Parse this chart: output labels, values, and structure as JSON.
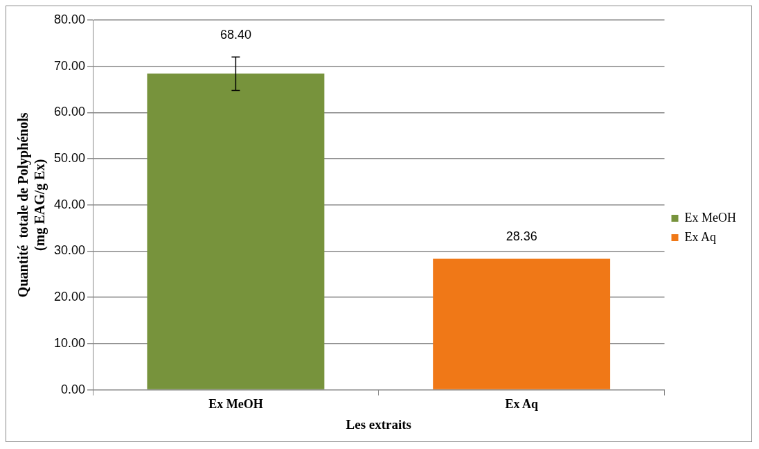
{
  "chart_data": {
    "type": "bar",
    "xlabel": "Les extraits",
    "ylabel": "Quantité  totale de Polyphénols\n(mg EAG/g Ex)",
    "categories": [
      "Ex MeOH",
      "Ex Aq"
    ],
    "series": [
      {
        "name": "Ex MeOH",
        "color": "#77933c",
        "values": [
          68.4,
          null
        ],
        "errors": [
          [
            64.8,
            72.0
          ],
          null
        ],
        "value_labels": [
          "68.40",
          null
        ]
      },
      {
        "name": "Ex Aq",
        "color": "#f07817",
        "values": [
          null,
          28.36
        ],
        "value_labels": [
          null,
          "28.36"
        ]
      }
    ],
    "ylim": [
      0,
      80
    ],
    "yticks": [
      {
        "value": 0,
        "label": "0.00"
      },
      {
        "value": 10,
        "label": "10.00"
      },
      {
        "value": 20,
        "label": "20.00"
      },
      {
        "value": 30,
        "label": "30.00"
      },
      {
        "value": 40,
        "label": "40.00"
      },
      {
        "value": 50,
        "label": "50.00"
      },
      {
        "value": 60,
        "label": "60.00"
      },
      {
        "value": 70,
        "label": "70.00"
      },
      {
        "value": 80,
        "label": "80.00"
      }
    ],
    "grid": "y",
    "legend": "right"
  }
}
